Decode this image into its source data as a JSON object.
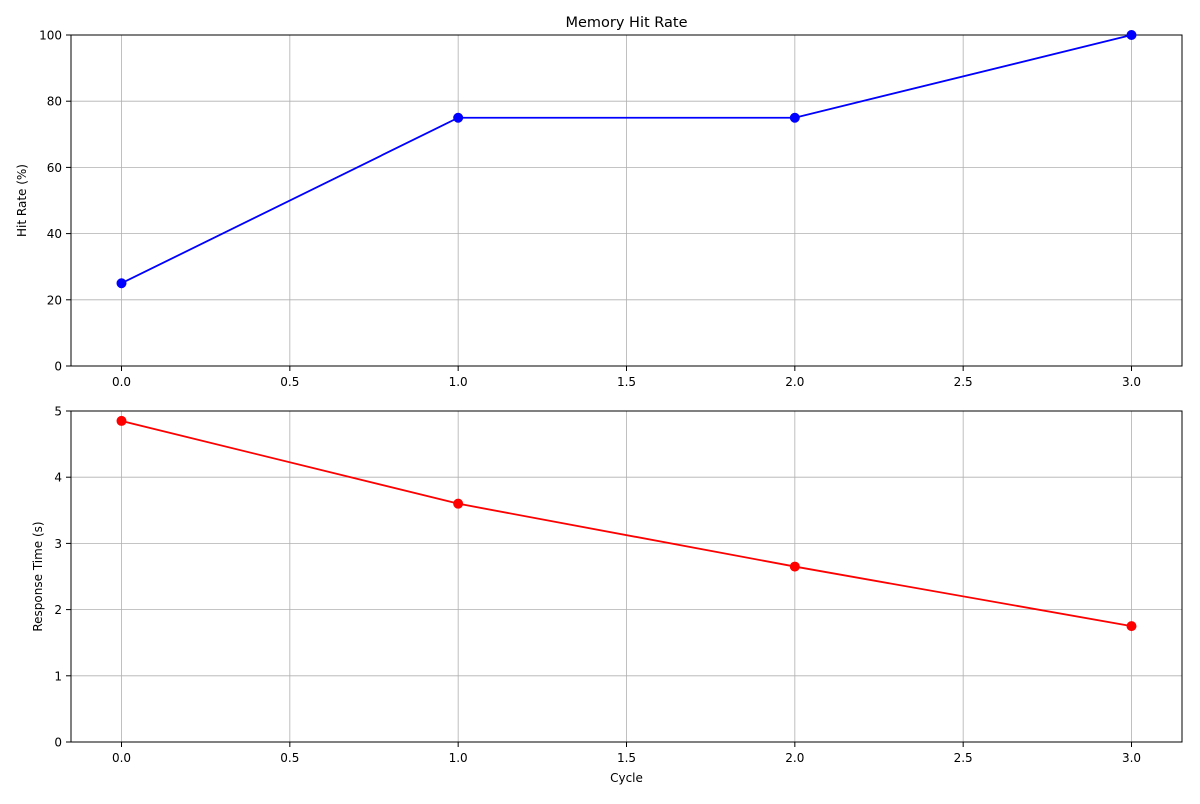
{
  "chart_data": [
    {
      "type": "line",
      "title": "Memory Hit Rate",
      "xlabel": "",
      "ylabel": "Hit Rate (%)",
      "x": [
        0,
        1,
        2,
        3
      ],
      "series": [
        {
          "values": [
            25,
            75,
            75,
            100
          ],
          "color": "#0000ff",
          "marker": "circle"
        }
      ],
      "xlim": [
        -0.15,
        3.15
      ],
      "ylim": [
        0,
        100
      ],
      "xticks": [
        0.0,
        0.5,
        1.0,
        1.5,
        2.0,
        2.5,
        3.0
      ],
      "xtick_labels": [
        "0.0",
        "0.5",
        "1.0",
        "1.5",
        "2.0",
        "2.5",
        "3.0"
      ],
      "yticks": [
        0,
        20,
        40,
        60,
        80,
        100
      ],
      "ytick_labels": [
        "0",
        "20",
        "40",
        "60",
        "80",
        "100"
      ],
      "grid": true
    },
    {
      "type": "line",
      "title": "",
      "xlabel": "Cycle",
      "ylabel": "Response Time (s)",
      "x": [
        0,
        1,
        2,
        3
      ],
      "series": [
        {
          "values": [
            4.85,
            3.6,
            2.65,
            1.75
          ],
          "color": "#ff0000",
          "marker": "circle"
        }
      ],
      "xlim": [
        -0.15,
        3.15
      ],
      "ylim": [
        0,
        5
      ],
      "xticks": [
        0.0,
        0.5,
        1.0,
        1.5,
        2.0,
        2.5,
        3.0
      ],
      "xtick_labels": [
        "0.0",
        "0.5",
        "1.0",
        "1.5",
        "2.0",
        "2.5",
        "3.0"
      ],
      "yticks": [
        0,
        1,
        2,
        3,
        4,
        5
      ],
      "ytick_labels": [
        "0",
        "1",
        "2",
        "3",
        "4",
        "5"
      ],
      "grid": true
    }
  ]
}
